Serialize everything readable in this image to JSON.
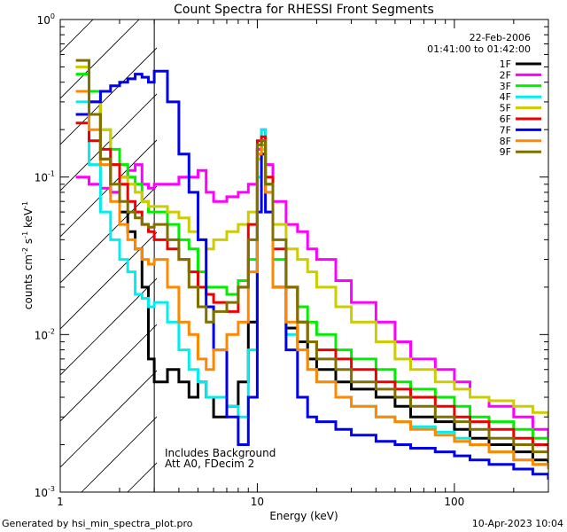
{
  "chart_data": {
    "type": "line",
    "title": "Count Spectra for RHESSI Front Segments",
    "xlabel": "Energy (keV)",
    "ylabel_parts": {
      "a": "counts cm",
      "b": "-2",
      "c": " s",
      "d": "-1",
      "e": " keV",
      "f": "-1"
    },
    "xscale": "log",
    "yscale": "log",
    "xlim": [
      1,
      300
    ],
    "ylim": [
      0.001,
      1
    ],
    "x_ticks": [
      {
        "value": 1,
        "label": "1"
      },
      {
        "value": 10,
        "label": "10"
      },
      {
        "value": 100,
        "label": "100"
      }
    ],
    "y_ticks": [
      {
        "value": 1,
        "base": "10",
        "exp": "0"
      },
      {
        "value": 0.1,
        "base": "10",
        "exp": "-1"
      },
      {
        "value": 0.01,
        "base": "10",
        "exp": "-2"
      },
      {
        "value": 0.001,
        "base": "10",
        "exp": "-3"
      }
    ],
    "legend": {
      "date": "22-Feb-2006",
      "time_range": "01:41:00 to 01:42:00"
    },
    "shaded_region": {
      "x_from": 1,
      "x_to": 3
    },
    "annotations": [
      "Includes Background",
      "Att A0, FDecim 2"
    ],
    "series": [
      {
        "name": "1F",
        "color": "#000000",
        "x": [
          1.2,
          1.4,
          1.6,
          1.8,
          2.0,
          2.2,
          2.4,
          2.6,
          2.8,
          3.0,
          3.5,
          4,
          4.5,
          5,
          5.5,
          6,
          7,
          8,
          9,
          10,
          10.5,
          11,
          12,
          14,
          16,
          18,
          20,
          25,
          30,
          40,
          50,
          60,
          80,
          100,
          120,
          150,
          200,
          250,
          300
        ],
        "y": [
          0.5,
          0.3,
          0.13,
          0.08,
          0.06,
          0.045,
          0.035,
          0.02,
          0.007,
          0.005,
          0.006,
          0.005,
          0.004,
          0.005,
          0.004,
          0.003,
          0.0035,
          0.005,
          0.012,
          0.15,
          0.17,
          0.09,
          0.02,
          0.011,
          0.009,
          0.007,
          0.006,
          0.005,
          0.0045,
          0.004,
          0.0035,
          0.003,
          0.0028,
          0.0025,
          0.0022,
          0.002,
          0.0018,
          0.0016,
          0.0015
        ]
      },
      {
        "name": "2F",
        "color": "#ff00ff",
        "x": [
          1.2,
          1.4,
          1.6,
          1.8,
          2.0,
          2.2,
          2.4,
          2.6,
          2.8,
          3.0,
          3.5,
          4,
          4.5,
          5,
          5.5,
          6,
          7,
          8,
          9,
          10,
          10.5,
          11,
          12,
          14,
          16,
          18,
          20,
          25,
          30,
          40,
          50,
          60,
          80,
          100,
          120,
          150,
          200,
          250,
          300
        ],
        "y": [
          0.1,
          0.09,
          0.085,
          0.08,
          0.1,
          0.11,
          0.12,
          0.09,
          0.085,
          0.09,
          0.09,
          0.1,
          0.1,
          0.11,
          0.08,
          0.07,
          0.075,
          0.08,
          0.09,
          0.15,
          0.2,
          0.12,
          0.07,
          0.05,
          0.045,
          0.035,
          0.03,
          0.022,
          0.016,
          0.012,
          0.009,
          0.007,
          0.006,
          0.005,
          0.004,
          0.0035,
          0.003,
          0.0025,
          0.002
        ]
      },
      {
        "name": "3F",
        "color": "#00ee00",
        "x": [
          1.2,
          1.4,
          1.6,
          1.8,
          2.0,
          2.2,
          2.4,
          2.6,
          2.8,
          3.0,
          3.5,
          4,
          4.5,
          5,
          5.5,
          6,
          7,
          8,
          9,
          10,
          10.5,
          11,
          12,
          14,
          16,
          18,
          20,
          25,
          30,
          40,
          50,
          60,
          80,
          100,
          120,
          150,
          200,
          250,
          300
        ],
        "y": [
          0.45,
          0.35,
          0.2,
          0.15,
          0.12,
          0.1,
          0.09,
          0.07,
          0.06,
          0.06,
          0.05,
          0.04,
          0.035,
          0.025,
          0.02,
          0.02,
          0.018,
          0.022,
          0.03,
          0.13,
          0.16,
          0.09,
          0.03,
          0.02,
          0.015,
          0.012,
          0.01,
          0.008,
          0.007,
          0.006,
          0.005,
          0.0045,
          0.004,
          0.0035,
          0.003,
          0.0028,
          0.0025,
          0.0022,
          0.002
        ]
      },
      {
        "name": "4F",
        "color": "#00eeee",
        "x": [
          1.2,
          1.4,
          1.6,
          1.8,
          2.0,
          2.2,
          2.4,
          2.6,
          2.8,
          3.0,
          3.5,
          4,
          4.5,
          5,
          5.5,
          6,
          7,
          8,
          9,
          10,
          10.5,
          11,
          12,
          14,
          16,
          18,
          20,
          25,
          30,
          40,
          50,
          60,
          80,
          100,
          120,
          150,
          200,
          250,
          300
        ],
        "y": [
          0.3,
          0.12,
          0.06,
          0.04,
          0.03,
          0.025,
          0.018,
          0.017,
          0.015,
          0.016,
          0.012,
          0.008,
          0.006,
          0.005,
          0.004,
          0.004,
          0.0035,
          0.003,
          0.008,
          0.1,
          0.2,
          0.08,
          0.02,
          0.01,
          0.008,
          0.006,
          0.005,
          0.004,
          0.0035,
          0.003,
          0.0028,
          0.0026,
          0.0024,
          0.0022,
          0.002,
          0.0018,
          0.0016,
          0.0015,
          0.0014
        ]
      },
      {
        "name": "5F",
        "color": "#cccc00",
        "x": [
          1.2,
          1.4,
          1.6,
          1.8,
          2.0,
          2.2,
          2.4,
          2.6,
          2.8,
          3.0,
          3.5,
          4,
          4.5,
          5,
          5.5,
          6,
          7,
          8,
          9,
          10,
          10.5,
          11,
          12,
          14,
          16,
          18,
          20,
          25,
          30,
          40,
          50,
          60,
          80,
          100,
          120,
          150,
          200,
          250,
          300
        ],
        "y": [
          0.5,
          0.3,
          0.2,
          0.12,
          0.1,
          0.09,
          0.08,
          0.07,
          0.065,
          0.065,
          0.06,
          0.055,
          0.045,
          0.04,
          0.035,
          0.04,
          0.045,
          0.05,
          0.06,
          0.13,
          0.15,
          0.09,
          0.05,
          0.035,
          0.03,
          0.025,
          0.02,
          0.015,
          0.012,
          0.009,
          0.007,
          0.006,
          0.005,
          0.0045,
          0.004,
          0.0038,
          0.0035,
          0.0032,
          0.003
        ]
      },
      {
        "name": "6F",
        "color": "#ee0000",
        "x": [
          1.2,
          1.4,
          1.6,
          1.8,
          2.0,
          2.2,
          2.4,
          2.6,
          2.8,
          3.0,
          3.5,
          4,
          4.5,
          5,
          5.5,
          6,
          7,
          8,
          9,
          10,
          10.5,
          11,
          12,
          14,
          16,
          18,
          20,
          25,
          30,
          40,
          50,
          60,
          80,
          100,
          120,
          150,
          200,
          250,
          300
        ],
        "y": [
          0.22,
          0.17,
          0.15,
          0.12,
          0.09,
          0.07,
          0.06,
          0.05,
          0.045,
          0.04,
          0.035,
          0.03,
          0.025,
          0.02,
          0.018,
          0.016,
          0.014,
          0.02,
          0.05,
          0.17,
          0.18,
          0.1,
          0.035,
          0.02,
          0.012,
          0.009,
          0.008,
          0.007,
          0.006,
          0.005,
          0.0045,
          0.004,
          0.0035,
          0.003,
          0.0028,
          0.0025,
          0.0022,
          0.002,
          0.0018
        ]
      },
      {
        "name": "7F",
        "color": "#0000ee",
        "x": [
          1.2,
          1.4,
          1.6,
          1.8,
          2.0,
          2.2,
          2.4,
          2.6,
          2.8,
          3.0,
          3.5,
          4,
          4.5,
          5,
          5.5,
          6,
          7,
          8,
          9,
          10,
          10.5,
          11,
          12,
          14,
          16,
          18,
          20,
          25,
          30,
          40,
          50,
          60,
          80,
          100,
          120,
          150,
          200,
          250,
          300
        ],
        "y": [
          0.25,
          0.3,
          0.35,
          0.38,
          0.4,
          0.42,
          0.45,
          0.43,
          0.4,
          0.47,
          0.3,
          0.14,
          0.08,
          0.04,
          0.015,
          0.008,
          0.003,
          0.002,
          0.004,
          0.06,
          0.14,
          0.06,
          0.02,
          0.008,
          0.004,
          0.003,
          0.0028,
          0.0025,
          0.0023,
          0.0021,
          0.002,
          0.0019,
          0.0018,
          0.0017,
          0.0016,
          0.0015,
          0.0014,
          0.0013,
          0.0012
        ]
      },
      {
        "name": "8F",
        "color": "#ff8800",
        "x": [
          1.2,
          1.4,
          1.6,
          1.8,
          2.0,
          2.2,
          2.4,
          2.6,
          2.8,
          3.0,
          3.5,
          4,
          4.5,
          5,
          5.5,
          6,
          7,
          8,
          9,
          10,
          10.5,
          11,
          12,
          14,
          16,
          18,
          20,
          25,
          30,
          40,
          50,
          60,
          80,
          100,
          120,
          150,
          200,
          250,
          300
        ],
        "y": [
          0.35,
          0.2,
          0.12,
          0.07,
          0.05,
          0.04,
          0.035,
          0.03,
          0.028,
          0.03,
          0.02,
          0.012,
          0.01,
          0.007,
          0.006,
          0.008,
          0.01,
          0.012,
          0.025,
          0.14,
          0.17,
          0.08,
          0.02,
          0.012,
          0.008,
          0.006,
          0.005,
          0.004,
          0.0035,
          0.003,
          0.0028,
          0.0025,
          0.0023,
          0.0021,
          0.002,
          0.0018,
          0.0016,
          0.0015,
          0.0014
        ]
      },
      {
        "name": "9F",
        "color": "#807000",
        "x": [
          1.2,
          1.4,
          1.6,
          1.8,
          2.0,
          2.2,
          2.4,
          2.6,
          2.8,
          3.0,
          3.5,
          4,
          4.5,
          5,
          5.5,
          6,
          7,
          8,
          9,
          10,
          10.5,
          11,
          12,
          14,
          16,
          18,
          20,
          25,
          30,
          40,
          50,
          60,
          80,
          100,
          120,
          150,
          200,
          250,
          300
        ],
        "y": [
          0.55,
          0.25,
          0.13,
          0.09,
          0.07,
          0.06,
          0.055,
          0.05,
          0.048,
          0.05,
          0.04,
          0.03,
          0.02,
          0.015,
          0.012,
          0.014,
          0.016,
          0.02,
          0.04,
          0.16,
          0.17,
          0.09,
          0.04,
          0.02,
          0.012,
          0.009,
          0.007,
          0.006,
          0.005,
          0.0045,
          0.004,
          0.0035,
          0.003,
          0.0028,
          0.0025,
          0.0022,
          0.002,
          0.0018,
          0.0016
        ]
      }
    ]
  },
  "footer": {
    "left": "Generated by hsi_min_spectra_plot.pro",
    "right": "10-Apr-2023 10:04"
  }
}
